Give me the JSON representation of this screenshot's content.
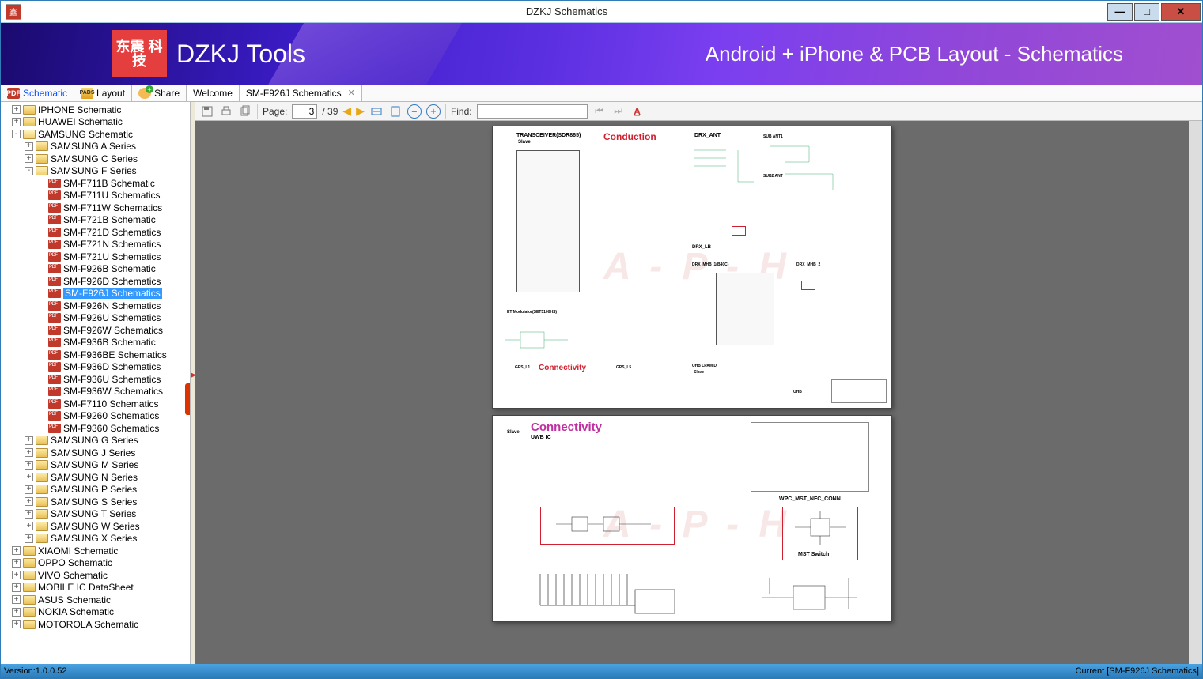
{
  "window": {
    "title": "DZKJ Schematics",
    "icon_bg": "#c0392b"
  },
  "banner": {
    "logo_text": "东震\n科技",
    "brand": "DZKJ Tools",
    "tagline": "Android + iPhone & PCB Layout - Schematics",
    "gradient_from": "#1a0a6e",
    "gradient_to": "#a04fcf"
  },
  "tabs": {
    "schematic": "Schematic",
    "layout": "Layout",
    "share": "Share",
    "welcome": "Welcome",
    "doc": "SM-F926J Schematics"
  },
  "tree": {
    "roots": [
      {
        "label": "IPHONE Schematic",
        "expand": "+",
        "ico": "folder",
        "indent": 0
      },
      {
        "label": "HUAWEI Schematic",
        "expand": "+",
        "ico": "folder",
        "indent": 0
      },
      {
        "label": "SAMSUNG Schematic",
        "expand": "-",
        "ico": "folder-open",
        "indent": 0
      },
      {
        "label": "SAMSUNG A Series",
        "expand": "+",
        "ico": "folder",
        "indent": 1
      },
      {
        "label": "SAMSUNG C Series",
        "expand": "+",
        "ico": "folder",
        "indent": 1
      },
      {
        "label": "SAMSUNG F Series",
        "expand": "-",
        "ico": "folder-open",
        "indent": 1
      },
      {
        "label": "SM-F711B Schematic",
        "expand": "",
        "ico": "pdf",
        "indent": 2
      },
      {
        "label": "SM-F711U Schematics",
        "expand": "",
        "ico": "pdf",
        "indent": 2
      },
      {
        "label": "SM-F711W Schematics",
        "expand": "",
        "ico": "pdf",
        "indent": 2
      },
      {
        "label": "SM-F721B Schematic",
        "expand": "",
        "ico": "pdf",
        "indent": 2
      },
      {
        "label": "SM-F721D Schematics",
        "expand": "",
        "ico": "pdf",
        "indent": 2
      },
      {
        "label": "SM-F721N Schematics",
        "expand": "",
        "ico": "pdf",
        "indent": 2
      },
      {
        "label": "SM-F721U Schematics",
        "expand": "",
        "ico": "pdf",
        "indent": 2
      },
      {
        "label": "SM-F926B Schematic",
        "expand": "",
        "ico": "pdf",
        "indent": 2
      },
      {
        "label": "SM-F926D Schematics",
        "expand": "",
        "ico": "pdf",
        "indent": 2
      },
      {
        "label": "SM-F926J Schematics",
        "expand": "",
        "ico": "pdf",
        "indent": 2,
        "selected": true
      },
      {
        "label": "SM-F926N Schematics",
        "expand": "",
        "ico": "pdf",
        "indent": 2
      },
      {
        "label": "SM-F926U Schematics",
        "expand": "",
        "ico": "pdf",
        "indent": 2
      },
      {
        "label": "SM-F926W Schematics",
        "expand": "",
        "ico": "pdf",
        "indent": 2
      },
      {
        "label": "SM-F936B Schematic",
        "expand": "",
        "ico": "pdf",
        "indent": 2
      },
      {
        "label": "SM-F936BE Schematics",
        "expand": "",
        "ico": "pdf",
        "indent": 2
      },
      {
        "label": "SM-F936D Schematics",
        "expand": "",
        "ico": "pdf",
        "indent": 2
      },
      {
        "label": "SM-F936U Schematics",
        "expand": "",
        "ico": "pdf",
        "indent": 2
      },
      {
        "label": "SM-F936W Schematics",
        "expand": "",
        "ico": "pdf",
        "indent": 2
      },
      {
        "label": "SM-F7110 Schematics",
        "expand": "",
        "ico": "pdf",
        "indent": 2
      },
      {
        "label": "SM-F9260 Schematics",
        "expand": "",
        "ico": "pdf",
        "indent": 2
      },
      {
        "label": "SM-F9360 Schematics",
        "expand": "",
        "ico": "pdf",
        "indent": 2
      },
      {
        "label": "SAMSUNG G Series",
        "expand": "+",
        "ico": "folder",
        "indent": 1
      },
      {
        "label": "SAMSUNG J Series",
        "expand": "+",
        "ico": "folder",
        "indent": 1
      },
      {
        "label": "SAMSUNG M Series",
        "expand": "+",
        "ico": "folder",
        "indent": 1
      },
      {
        "label": "SAMSUNG N Series",
        "expand": "+",
        "ico": "folder",
        "indent": 1
      },
      {
        "label": "SAMSUNG P Series",
        "expand": "+",
        "ico": "folder",
        "indent": 1
      },
      {
        "label": "SAMSUNG S Series",
        "expand": "+",
        "ico": "folder",
        "indent": 1
      },
      {
        "label": "SAMSUNG T Series",
        "expand": "+",
        "ico": "folder",
        "indent": 1
      },
      {
        "label": "SAMSUNG W Series",
        "expand": "+",
        "ico": "folder",
        "indent": 1
      },
      {
        "label": "SAMSUNG X Series",
        "expand": "+",
        "ico": "folder",
        "indent": 1
      },
      {
        "label": "XIAOMI Schematic",
        "expand": "+",
        "ico": "folder",
        "indent": 0
      },
      {
        "label": "OPPO Schematic",
        "expand": "+",
        "ico": "folder",
        "indent": 0
      },
      {
        "label": "VIVO Schematic",
        "expand": "+",
        "ico": "folder",
        "indent": 0
      },
      {
        "label": "MOBILE IC DataSheet",
        "expand": "+",
        "ico": "folder",
        "indent": 0
      },
      {
        "label": "ASUS Schematic",
        "expand": "+",
        "ico": "folder",
        "indent": 0
      },
      {
        "label": "NOKIA Schematic",
        "expand": "+",
        "ico": "folder",
        "indent": 0
      },
      {
        "label": "MOTOROLA Schematic",
        "expand": "+",
        "ico": "folder",
        "indent": 0
      }
    ]
  },
  "toolbar": {
    "page_label": "Page:",
    "page_current": "3",
    "page_total": "/ 39",
    "find_label": "Find:",
    "find_value": ""
  },
  "schematic": {
    "watermark": "A - P - H",
    "page1": {
      "title1": "TRANSCEIVER(SDR865)",
      "title1_sub": "Slave",
      "title1_red": "Conduction",
      "drx_ant": "DRX_ANT",
      "sub_ant1": "SUB ANT1",
      "sub_ant2": "SUB2 ANT",
      "drx_lb": "DRX_LB",
      "drx_mhb": "DRX_MHB_1(B40C)",
      "drx_mhb2": "DRX_MHB_2",
      "et_mod": "ET Modulator(SET5100HS)",
      "connectivity": "Connectivity",
      "gps_l1": "GPS_L1",
      "gps_l5": "GPS_L5",
      "uhb_lpamid": "UHB LPAMID",
      "uhb": "UHB",
      "slave2": "Slave",
      "red_color": "#d02030"
    },
    "page2": {
      "title": "Connectivity",
      "sub": "UWB IC",
      "slave": "Slave",
      "wpc": "WPC_MST_NFC_CONN",
      "mst": "MST Switch",
      "mag_color": "#c030a0"
    }
  },
  "status": {
    "version": "Version:1.0.0.52",
    "current": "Current [SM-F926J Schematics]"
  },
  "colors": {
    "titlebar_border": "#2e7cb8",
    "close_btn": "#c94f44",
    "selection": "#3399ff",
    "status_bg_from": "#4aa3e0",
    "status_bg_to": "#2b7ab8"
  }
}
